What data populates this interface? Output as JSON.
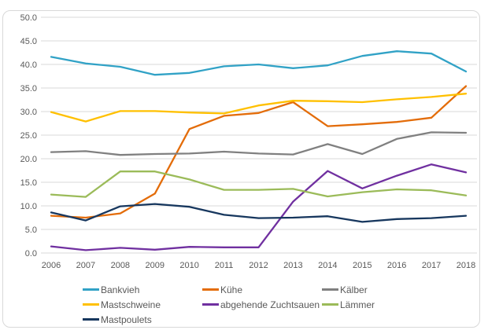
{
  "frame": {
    "border_color": "#d8d8d8",
    "background": "#ffffff"
  },
  "axis": {
    "text_color": "#595959",
    "grid_color": "#d9d9d9"
  },
  "chart_data": {
    "type": "line",
    "title": "",
    "xlabel": "",
    "ylabel": "",
    "grid": true,
    "legend_position": "bottom",
    "ylim": [
      0,
      50
    ],
    "ytick_step": 5,
    "ytick_labels": [
      "0.0",
      "5.0",
      "10.0",
      "15.0",
      "20.0",
      "25.0",
      "30.0",
      "35.0",
      "40.0",
      "45.0",
      "50.0"
    ],
    "x": [
      2006,
      2007,
      2008,
      2009,
      2010,
      2011,
      2012,
      2013,
      2014,
      2015,
      2016,
      2017,
      2018
    ],
    "series": [
      {
        "name": "Bankvieh",
        "color": "#31a2c6",
        "values": [
          41.6,
          40.2,
          39.5,
          37.8,
          38.2,
          39.6,
          40.0,
          39.2,
          39.8,
          41.8,
          42.8,
          42.3,
          38.5
        ]
      },
      {
        "name": "Kühe",
        "color": "#e36c09",
        "values": [
          7.9,
          7.5,
          8.4,
          12.6,
          26.3,
          29.1,
          29.7,
          32.0,
          26.9,
          27.3,
          27.8,
          28.7,
          35.4
        ]
      },
      {
        "name": "Kälber",
        "color": "#808080",
        "values": [
          21.4,
          21.6,
          20.8,
          21.0,
          21.1,
          21.5,
          21.1,
          20.9,
          23.1,
          21.0,
          24.2,
          25.6,
          25.5
        ]
      },
      {
        "name": "Mastschweine",
        "color": "#ffc000",
        "values": [
          29.9,
          27.9,
          30.1,
          30.1,
          29.8,
          29.6,
          31.3,
          32.3,
          32.2,
          32.0,
          32.6,
          33.1,
          33.8
        ]
      },
      {
        "name": "abgehende Zuchtsauen",
        "color": "#7030a0",
        "values": [
          1.4,
          0.6,
          1.1,
          0.7,
          1.3,
          1.2,
          1.2,
          10.9,
          17.4,
          13.7,
          16.4,
          18.8,
          17.1
        ]
      },
      {
        "name": "Lämmer",
        "color": "#9bbb59",
        "values": [
          12.4,
          11.9,
          17.3,
          17.3,
          15.6,
          13.4,
          13.4,
          13.6,
          12.0,
          12.9,
          13.5,
          13.3,
          12.2
        ]
      },
      {
        "name": "Mastpoulets",
        "color": "#17375e",
        "values": [
          8.6,
          6.9,
          9.9,
          10.4,
          9.8,
          8.1,
          7.4,
          7.5,
          7.8,
          6.6,
          7.2,
          7.4,
          7.9
        ]
      }
    ],
    "legend_order": [
      "Bankvieh",
      "Kühe",
      "Kälber",
      "Mastschweine",
      "abgehende Zuchtsauen",
      "Lämmer",
      "Mastpoulets"
    ]
  }
}
